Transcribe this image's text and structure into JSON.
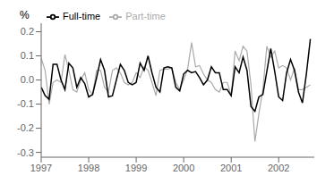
{
  "chart_data": {
    "type": "line",
    "ylabel": "%",
    "legend": "upper left",
    "grid": false,
    "xlim": [
      1997.0,
      2002.75
    ],
    "xticks": [
      1997,
      1998,
      1999,
      2000,
      2001,
      2002
    ],
    "ylim": [
      -0.32,
      0.235
    ],
    "yticks": [
      0.2,
      0.1,
      {
        "value": 0.0,
        "label": "0.0"
      },
      -0.1,
      -0.2,
      -0.3
    ],
    "x": [
      1997.0,
      1997.083,
      1997.167,
      1997.25,
      1997.333,
      1997.417,
      1997.5,
      1997.583,
      1997.667,
      1997.75,
      1997.833,
      1997.917,
      1998.0,
      1998.083,
      1998.167,
      1998.25,
      1998.333,
      1998.417,
      1998.5,
      1998.583,
      1998.667,
      1998.75,
      1998.833,
      1998.917,
      1999.0,
      1999.083,
      1999.167,
      1999.25,
      1999.333,
      1999.417,
      1999.5,
      1999.583,
      1999.667,
      1999.75,
      1999.833,
      1999.917,
      2000.0,
      2000.083,
      2000.167,
      2000.25,
      2000.333,
      2000.417,
      2000.5,
      2000.583,
      2000.667,
      2000.75,
      2000.833,
      2000.917,
      2001.0,
      2001.083,
      2001.167,
      2001.25,
      2001.333,
      2001.417,
      2001.5,
      2001.583,
      2001.667,
      2001.75,
      2001.833,
      2001.917,
      2002.0,
      2002.083,
      2002.167,
      2002.25,
      2002.333,
      2002.417,
      2002.5,
      2002.583,
      2002.667
    ],
    "series": [
      {
        "name": "Full-time",
        "color": "#000000",
        "values": [
          -0.03,
          -0.065,
          -0.08,
          0.065,
          0.065,
          0.0,
          -0.04,
          0.07,
          0.05,
          -0.03,
          0.01,
          -0.015,
          -0.07,
          -0.06,
          0.01,
          0.085,
          0.04,
          -0.07,
          -0.065,
          0.0,
          0.065,
          0.04,
          -0.01,
          -0.02,
          -0.01,
          0.07,
          0.04,
          0.1,
          0.03,
          -0.03,
          -0.05,
          0.05,
          0.055,
          0.05,
          -0.03,
          -0.045,
          0.025,
          0.04,
          0.03,
          0.035,
          0.01,
          -0.02,
          0.0,
          0.055,
          0.03,
          0.03,
          -0.04,
          -0.04,
          -0.065,
          0.055,
          0.03,
          0.095,
          0.04,
          -0.11,
          -0.13,
          -0.07,
          -0.06,
          0.035,
          0.13,
          0.035,
          -0.07,
          -0.085,
          0.03,
          0.085,
          0.04,
          -0.05,
          -0.095,
          0.025,
          0.17
        ]
      },
      {
        "name": "Part-time",
        "color": "#aaaaaa",
        "values": [
          0.09,
          0.04,
          -0.1,
          -0.01,
          0.0,
          -0.01,
          0.105,
          0.04,
          -0.04,
          -0.05,
          0.0,
          0.03,
          -0.04,
          -0.06,
          0.04,
          0.04,
          -0.03,
          -0.05,
          0.04,
          0.05,
          0.03,
          -0.01,
          -0.02,
          -0.01,
          0.03,
          0.01,
          0.055,
          0.04,
          -0.01,
          -0.065,
          0.04,
          0.045,
          0.045,
          0.05,
          -0.01,
          -0.04,
          0.0,
          0.045,
          0.155,
          0.055,
          0.06,
          0.025,
          0.0,
          -0.01,
          -0.04,
          -0.05,
          -0.01,
          -0.01,
          -0.065,
          0.12,
          0.08,
          0.14,
          0.12,
          -0.02,
          -0.255,
          -0.14,
          -0.04,
          0.14,
          0.095,
          0.12,
          0.05,
          0.06,
          0.05,
          0.0,
          0.05,
          -0.04,
          -0.04,
          -0.03,
          -0.02
        ]
      }
    ]
  }
}
